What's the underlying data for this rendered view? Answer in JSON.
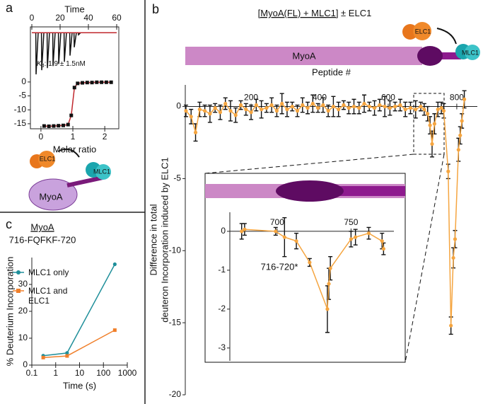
{
  "panel_labels": [
    "a",
    "b",
    "c"
  ],
  "cartoon_a": {
    "elc": "ELC1",
    "mlc": "MLC1",
    "myo": "MyoA"
  },
  "cartoon_b": {
    "myo": "MyoA",
    "elc": "ELC1",
    "mlc": "MLC1"
  },
  "chart_data": [
    {
      "type": "line",
      "xlabel": "Time",
      "x_axis": "top",
      "xlim": [
        -1,
        61.5
      ],
      "xticks": [
        0,
        20,
        40,
        60
      ],
      "ylim": [
        -1.05,
        0.14
      ],
      "annotation": [
        "K",
        "d",
        ": 1.9 ± 1.5nM"
      ],
      "x": [
        0,
        2.8,
        3,
        4.5,
        6.8,
        7,
        8.5,
        10.8,
        11,
        12.5,
        14.8,
        15,
        16.5,
        18.8,
        19,
        20.5,
        22.8,
        23,
        24.5,
        26.8,
        27,
        28.5,
        29.8,
        30,
        31.5,
        32.8,
        33,
        34.5,
        60
      ],
      "series": [
        {
          "color": "#111111",
          "marker": "none",
          "values": [
            0,
            0,
            -1,
            0,
            0,
            -0.9,
            0,
            0,
            -0.85,
            0,
            0,
            -0.8,
            0,
            0,
            -0.75,
            0,
            0,
            -0.7,
            0,
            0,
            -0.55,
            0,
            0,
            -0.35,
            0,
            0,
            -0.05,
            0,
            0
          ]
        },
        {
          "color": "#c0272d",
          "marker": "none",
          "x": [
            0,
            60
          ],
          "values": [
            0,
            0
          ]
        }
      ]
    },
    {
      "type": "line",
      "xlabel": "Molar ratio",
      "x_axis": "bottom",
      "xlim": [
        -0.33,
        2.44
      ],
      "xticks": [
        0,
        1,
        2
      ],
      "ylim": [
        -16.8,
        2
      ],
      "yticks": [
        0,
        -5,
        -10,
        -15
      ],
      "x": [
        0.1,
        0.25,
        0.4,
        0.55,
        0.7,
        0.85,
        0.95,
        1.05,
        1.15,
        1.3,
        1.45,
        1.6,
        1.75,
        1.9,
        2.05,
        2.2
      ],
      "series": [
        {
          "color": "#c0272d",
          "marker": "none",
          "values": [
            -15.8,
            -15.9,
            -15.8,
            -15.7,
            -15.6,
            -15.3,
            -12,
            -2,
            -0.5,
            -0.3,
            -0.2,
            -0.2,
            -0.1,
            -0.1,
            -0.1,
            -0.1
          ]
        },
        {
          "color": "#111111",
          "marker": "square",
          "line": false,
          "values": [
            -15.8,
            -15.9,
            -15.8,
            -15.7,
            -15.6,
            -15.3,
            -12,
            -2,
            -0.5,
            -0.3,
            -0.2,
            -0.2,
            -0.1,
            -0.1,
            -0.1,
            -0.1
          ]
        }
      ]
    },
    {
      "type": "errorbar",
      "title": [
        "[MyoA(FL) + MLC1]",
        " ± ELC1"
      ],
      "xlabel": "Peptide #",
      "ylabel": [
        "Difference in total",
        "deuteron Incorporation induced by ELC1"
      ],
      "x_axis": "zero",
      "xlim": [
        8,
        860
      ],
      "xticks": [
        200,
        400,
        600,
        800
      ],
      "ylim": [
        -20,
        1.5
      ],
      "yticks": [
        0,
        -5,
        -10,
        -15,
        -20
      ],
      "x": [
        10,
        25,
        38,
        50,
        65,
        80,
        95,
        110,
        125,
        140,
        155,
        170,
        185,
        200,
        215,
        230,
        245,
        260,
        275,
        290,
        305,
        320,
        335,
        350,
        365,
        380,
        395,
        410,
        425,
        440,
        455,
        470,
        485,
        500,
        515,
        530,
        545,
        560,
        575,
        590,
        605,
        620,
        635,
        650,
        665,
        680,
        695,
        705,
        715,
        722,
        728,
        735,
        745,
        755,
        762,
        775,
        783,
        790,
        795,
        805,
        810,
        815,
        822
      ],
      "series": [
        {
          "color": "#f5a540",
          "marker": "circle",
          "values": [
            -0.3,
            -0.7,
            -1.8,
            -0.2,
            -0.3,
            -0.5,
            -0.1,
            -0.4,
            0.2,
            -0.3,
            -0.6,
            0.1,
            -0.2,
            -0.4,
            0.1,
            -0.2,
            -0.1,
            0.1,
            -0.3,
            0.2,
            -0.2,
            0,
            -0.3,
            0.1,
            -0.1,
            0.2,
            -0.1,
            0.1,
            -0.3,
            0,
            -0.2,
            0.1,
            -0.1,
            0,
            -0.1,
            0.2,
            0,
            -0.1,
            0.1,
            0,
            -0.1,
            0,
            0.1,
            -0.2,
            -0.1,
            -0.2,
            0,
            -0.2,
            -0.5,
            -1.3,
            -2.6,
            -1.2,
            -0.2,
            -0.1,
            -0.3,
            -4.5,
            -15.2,
            -10.5,
            -9.2,
            -3,
            -2,
            -1,
            0.5
          ],
          "errors": [
            0.4,
            0.5,
            0.6,
            0.5,
            0.4,
            0.6,
            0.3,
            0.5,
            0.4,
            0.7,
            0.5,
            0.3,
            0.4,
            0.5,
            0.4,
            0.6,
            0.3,
            0.5,
            0.4,
            0.7,
            0.5,
            0.3,
            0.4,
            0.5,
            0.4,
            0.6,
            0.3,
            0.5,
            0.4,
            0.7,
            0.5,
            0.3,
            0.4,
            0.5,
            0.4,
            0.6,
            0.3,
            0.5,
            0.4,
            0.7,
            0.5,
            0.3,
            0.4,
            0.5,
            0.4,
            0.6,
            0.3,
            0.4,
            0.5,
            0.6,
            0.9,
            0.7,
            0.5,
            0.4,
            0.5,
            0.5,
            0.6,
            0.7,
            0.6,
            0.8,
            0.6,
            0.5,
            0.6
          ]
        }
      ]
    },
    {
      "type": "errorbar",
      "x_axis": "zero",
      "annotation": "716-720*",
      "xlim": [
        668,
        779
      ],
      "xticks": [
        700,
        750
      ],
      "ylim": [
        -3.33,
        0.49
      ],
      "yticks": [
        0,
        -1,
        -2,
        -3
      ],
      "x": [
        676,
        678,
        699,
        705,
        713,
        722,
        734,
        735,
        736,
        750,
        753,
        762,
        771,
        772
      ],
      "series": [
        {
          "color": "#f5a540",
          "marker": "circle",
          "values": [
            0,
            0.05,
            0,
            -0.15,
            -0.25,
            -0.8,
            -2,
            -1.35,
            -0.95,
            -0.2,
            -0.15,
            -0.05,
            -0.25,
            -0.45
          ],
          "errors": [
            0.2,
            0.15,
            0.1,
            0.5,
            0.2,
            0.1,
            0.6,
            0.4,
            0.3,
            0.2,
            0.2,
            0.15,
            0.2,
            0.15
          ]
        }
      ]
    },
    {
      "type": "line",
      "title": "MyoA",
      "subtitle": "716-FQFKF-720",
      "xlabel": "Time (s)",
      "ylabel": [
        "% Deuterium Incorporation"
      ],
      "x_axis": "bottom",
      "log_x": true,
      "legend": "upper left",
      "xlim": [
        0.1,
        1000
      ],
      "xticks": [
        0.1,
        1,
        10,
        100,
        1000
      ],
      "ylim": [
        0,
        40
      ],
      "yticks": [
        0,
        10,
        20,
        30
      ],
      "x": [
        0.3,
        3,
        300
      ],
      "series": [
        {
          "name": "MLC1 only",
          "color": "#1f8f9a",
          "marker": "circle",
          "values": [
            3.5,
            4.5,
            37.5
          ]
        },
        {
          "name": "MLC1 and ELC1",
          "color": "#f07f2a",
          "marker": "square",
          "values": [
            2.8,
            3.4,
            13
          ]
        }
      ]
    }
  ]
}
